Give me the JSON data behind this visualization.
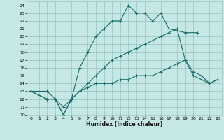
{
  "xlabel": "Humidex (Indice chaleur)",
  "background_color": "#c5e8e5",
  "grid_color": "#9cc8c5",
  "line_color": "#1a6b6b",
  "xlim": [
    -0.5,
    23.5
  ],
  "ylim": [
    10,
    24.5
  ],
  "xticks": [
    0,
    1,
    2,
    3,
    4,
    5,
    6,
    7,
    8,
    9,
    10,
    11,
    12,
    13,
    14,
    15,
    16,
    17,
    18,
    19,
    20,
    21,
    22,
    23
  ],
  "yticks": [
    10,
    11,
    12,
    13,
    14,
    15,
    16,
    17,
    18,
    19,
    20,
    21,
    22,
    23,
    24
  ],
  "lines": [
    {
      "x": [
        0,
        2,
        3,
        4,
        5,
        6,
        7,
        8,
        9,
        10,
        11,
        12,
        13,
        14,
        15,
        16,
        17,
        19,
        20.5
      ],
      "y": [
        13,
        13,
        12,
        11,
        12,
        16,
        18,
        20,
        21,
        22,
        22,
        24,
        23,
        23,
        22,
        23,
        21,
        20.5,
        20.5
      ]
    },
    {
      "x": [
        0,
        2,
        3,
        4,
        5,
        6,
        7,
        8,
        9,
        10,
        11,
        12,
        13,
        14,
        15,
        16,
        17,
        18,
        19,
        20,
        21,
        22,
        23
      ],
      "y": [
        13,
        12,
        12,
        10,
        12,
        13,
        14,
        15,
        16,
        17,
        17.5,
        18,
        18.5,
        19,
        19.5,
        20,
        20.5,
        21,
        17,
        15.5,
        15,
        14,
        14.5
      ]
    },
    {
      "x": [
        0,
        2,
        3,
        4,
        5,
        6,
        7,
        8,
        9,
        10,
        11,
        12,
        13,
        14,
        15,
        16,
        17,
        18,
        19,
        20,
        21,
        22,
        23
      ],
      "y": [
        13,
        12,
        12,
        10,
        12,
        13,
        13.5,
        14,
        14,
        14,
        14.5,
        14.5,
        15,
        15,
        15,
        15.5,
        16,
        16.5,
        17,
        15,
        14.5,
        14,
        14.5
      ]
    }
  ]
}
